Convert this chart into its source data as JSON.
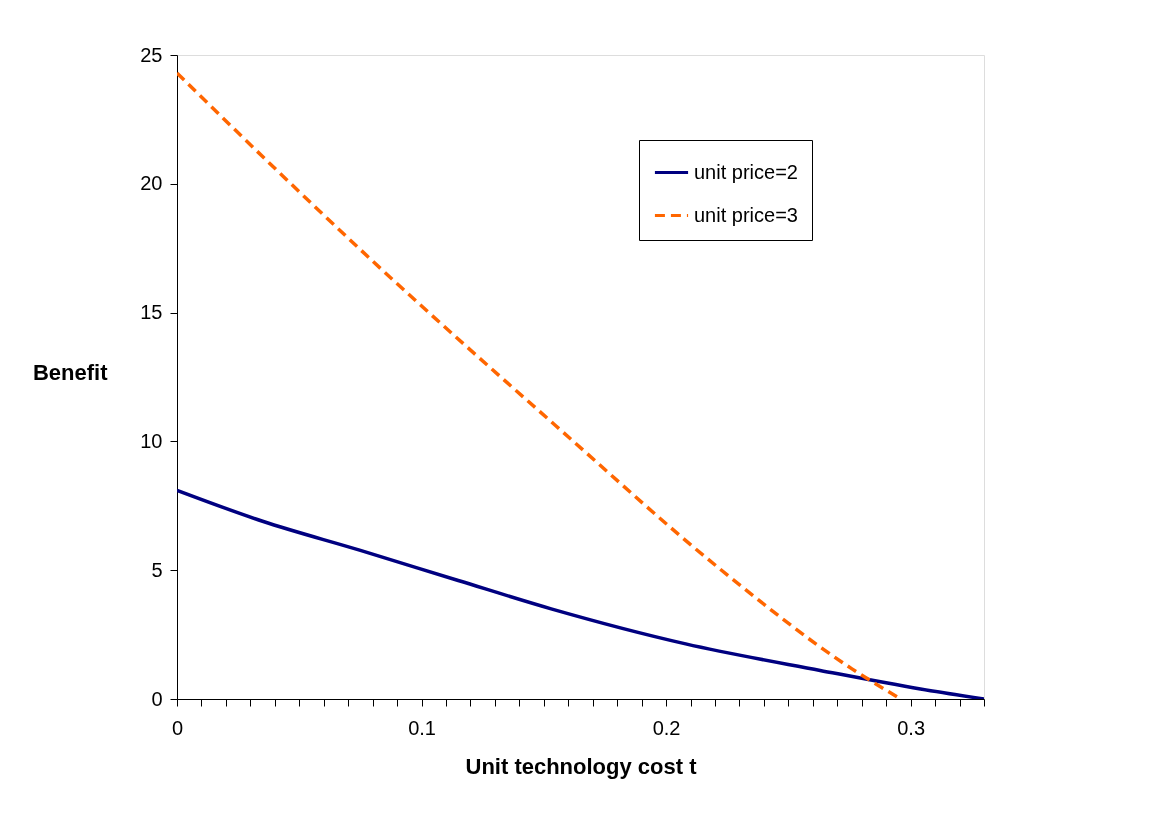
{
  "chart_data": {
    "type": "line",
    "xlabel": "Unit technology cost t",
    "ylabel": "Benefit",
    "series": [
      {
        "name": "unit price=2",
        "color": "#000080",
        "line_style": "solid",
        "x": [
          0,
          0.035,
          0.075,
          0.115,
          0.153,
          0.208,
          0.263,
          0.304,
          0.33
        ],
        "values": [
          8.1,
          6.9,
          5.77,
          4.6,
          3.5,
          2.14,
          1.11,
          0.39,
          0
        ]
      },
      {
        "name": "unit price=3",
        "color": "#ff6600",
        "line_style": "dashed",
        "x": [
          0,
          0.04,
          0.08,
          0.155,
          0.222,
          0.276,
          0.296
        ],
        "values": [
          24.3,
          20.6,
          17.0,
          10.6,
          5.05,
          1.17,
          0
        ]
      }
    ],
    "xlim": [
      0,
      0.33
    ],
    "ylim": [
      0,
      25
    ],
    "xticks": [
      0,
      {
        "value": 0.01,
        "label": null
      },
      {
        "value": 0.02,
        "label": null
      },
      {
        "value": 0.03,
        "label": null
      },
      {
        "value": 0.04,
        "label": null
      },
      {
        "value": 0.05,
        "label": null
      },
      {
        "value": 0.06,
        "label": null
      },
      {
        "value": 0.07,
        "label": null
      },
      {
        "value": 0.08,
        "label": null
      },
      {
        "value": 0.09,
        "label": null
      },
      0.1,
      {
        "value": 0.11,
        "label": null
      },
      {
        "value": 0.12,
        "label": null
      },
      {
        "value": 0.13,
        "label": null
      },
      {
        "value": 0.14,
        "label": null
      },
      {
        "value": 0.15,
        "label": null
      },
      {
        "value": 0.16,
        "label": null
      },
      {
        "value": 0.17,
        "label": null
      },
      {
        "value": 0.18,
        "label": null
      },
      {
        "value": 0.19,
        "label": null
      },
      0.2,
      {
        "value": 0.21,
        "label": null
      },
      {
        "value": 0.22,
        "label": null
      },
      {
        "value": 0.23,
        "label": null
      },
      {
        "value": 0.24,
        "label": null
      },
      {
        "value": 0.25,
        "label": null
      },
      {
        "value": 0.26,
        "label": null
      },
      {
        "value": 0.27,
        "label": null
      },
      {
        "value": 0.28,
        "label": null
      },
      {
        "value": 0.29,
        "label": null
      },
      0.3,
      {
        "value": 0.31,
        "label": null
      },
      {
        "value": 0.32,
        "label": null
      },
      {
        "value": 0.33,
        "label": null
      }
    ],
    "yticks": [
      0,
      5,
      10,
      15,
      20,
      25
    ],
    "grid": false,
    "legend": "top right",
    "marker": "none"
  }
}
